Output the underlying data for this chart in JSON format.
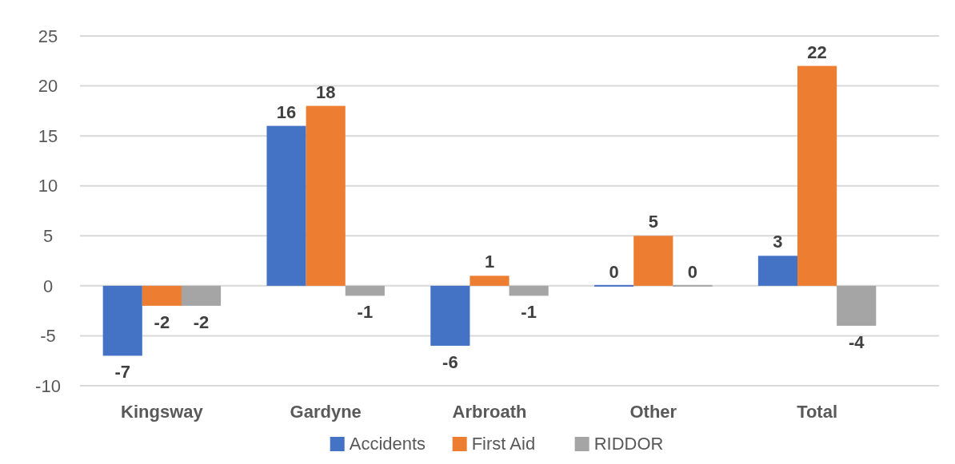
{
  "chart_data": {
    "type": "bar",
    "categories": [
      "Kingsway",
      "Gardyne",
      "Arbroath",
      "Other",
      "Total"
    ],
    "series": [
      {
        "name": "Accidents",
        "color": "#4472c4",
        "values": [
          -7,
          16,
          -6,
          0,
          3
        ]
      },
      {
        "name": "First Aid",
        "color": "#ed7d31",
        "values": [
          -2,
          18,
          1,
          5,
          22
        ]
      },
      {
        "name": "RIDDOR",
        "color": "#a5a5a5",
        "values": [
          -2,
          -1,
          -1,
          0,
          -4
        ]
      }
    ],
    "ylim": [
      -10,
      25
    ],
    "yticks": [
      -10,
      -5,
      0,
      5,
      10,
      15,
      20,
      25
    ],
    "grid": "y",
    "legend": "bottom",
    "data_labels": true
  }
}
